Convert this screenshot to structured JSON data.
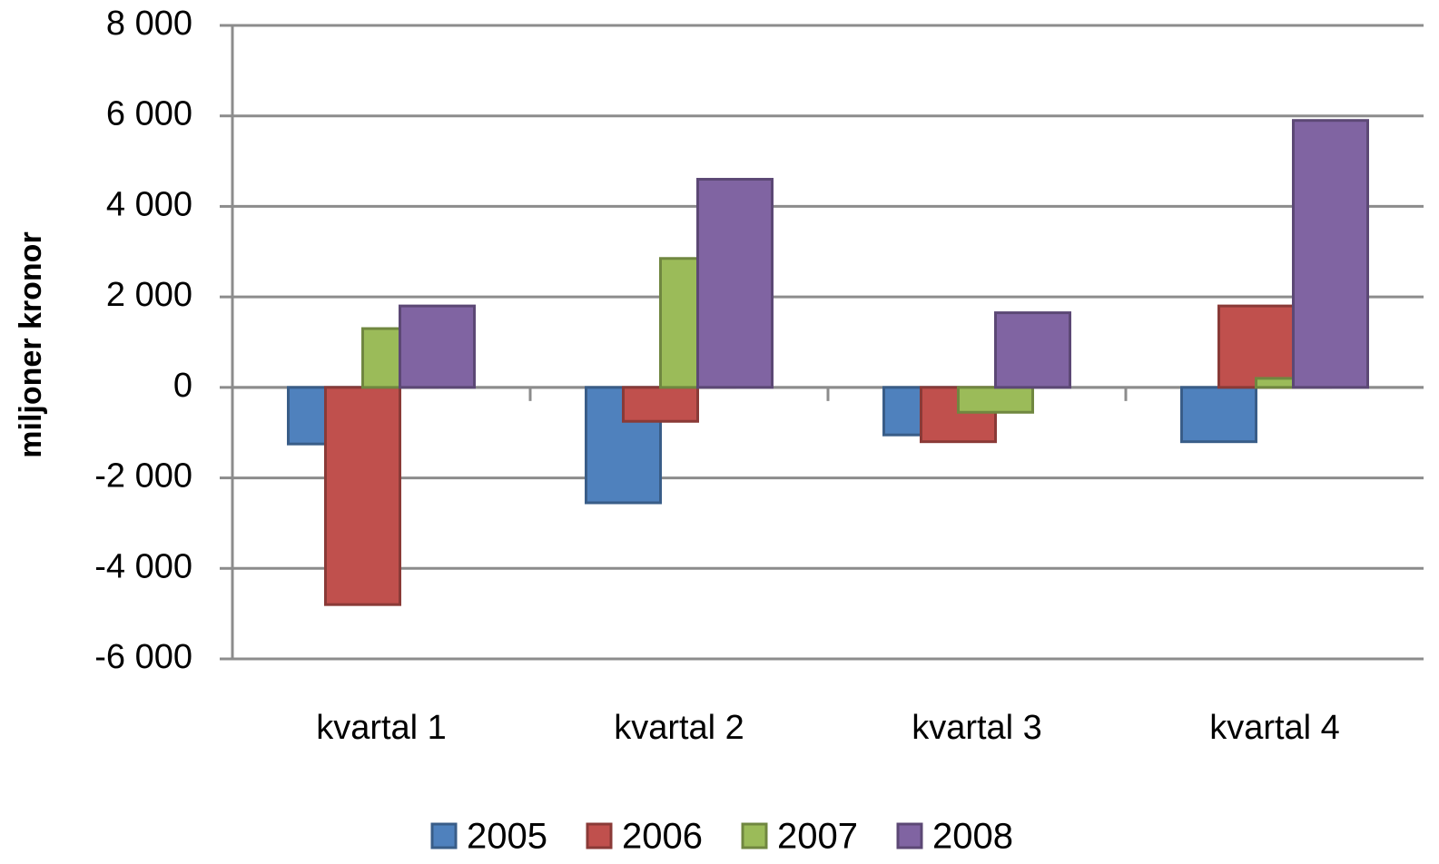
{
  "chart_data": {
    "type": "bar",
    "y_label": "miljoner kronor",
    "categories": [
      "kvartal 1",
      "kvartal 2",
      "kvartal 3",
      "kvartal 4"
    ],
    "series": [
      {
        "name": "2005",
        "color": "#4f81bd",
        "values": [
          -1250,
          -2550,
          -1050,
          -1200
        ]
      },
      {
        "name": "2006",
        "color": "#c0504d",
        "values": [
          -4800,
          -750,
          -1200,
          1800
        ]
      },
      {
        "name": "2007",
        "color": "#9bbb59",
        "values": [
          1300,
          2850,
          -550,
          200
        ]
      },
      {
        "name": "2008",
        "color": "#8064a2",
        "values": [
          1800,
          4600,
          1650,
          5900
        ]
      }
    ],
    "ylim": [
      -6000,
      8000
    ],
    "yticks": [
      {
        "value": -6000,
        "label": "-6 000"
      },
      {
        "value": -4000,
        "label": "-4 000"
      },
      {
        "value": -2000,
        "label": "-2 000"
      },
      0,
      {
        "value": 2000,
        "label": "2 000"
      },
      {
        "value": 4000,
        "label": "4 000"
      },
      {
        "value": 6000,
        "label": "6 000"
      },
      {
        "value": 8000,
        "label": "8 000"
      }
    ],
    "grid": true,
    "legend": "bottom"
  }
}
